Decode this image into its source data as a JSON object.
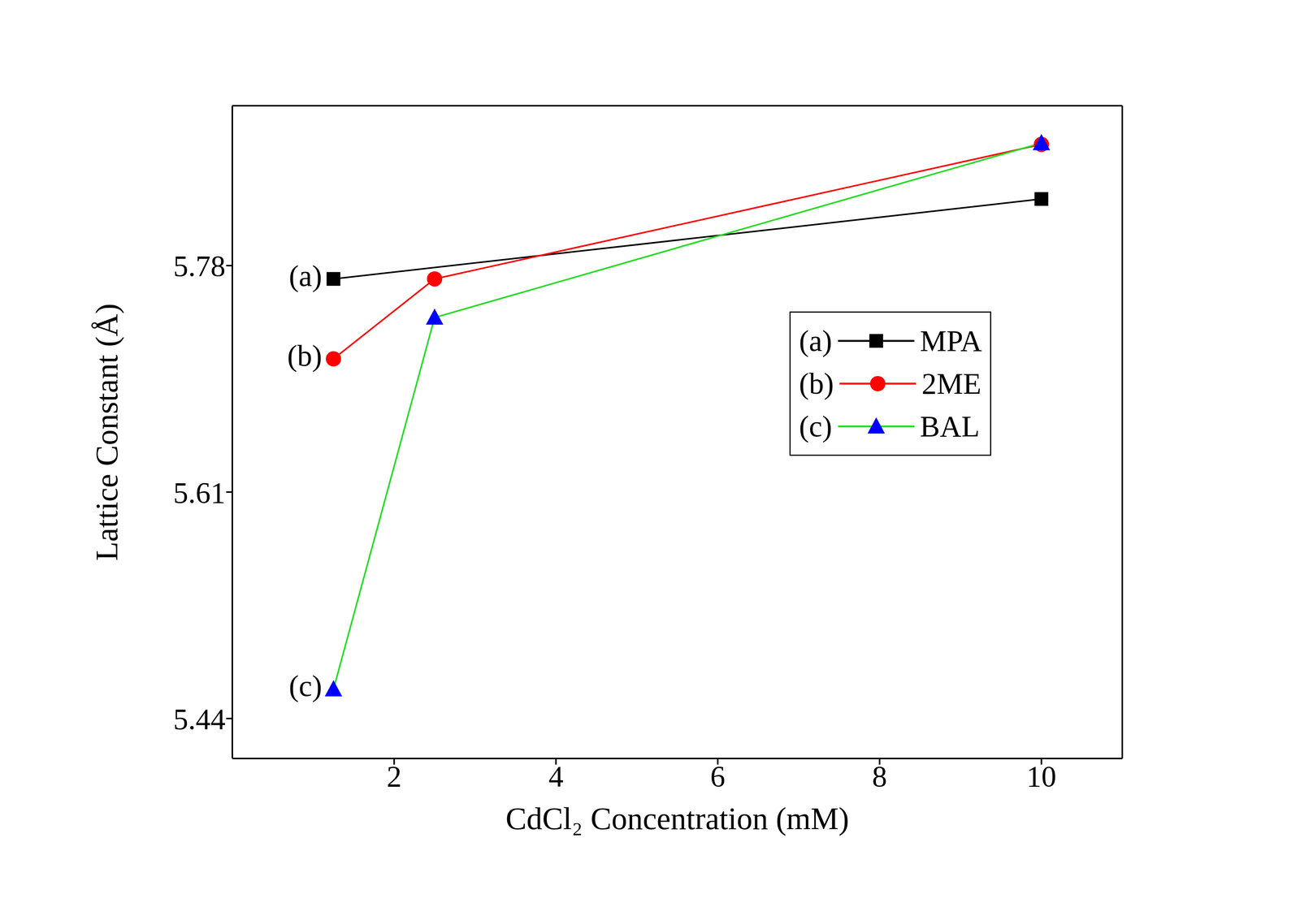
{
  "chart_data": {
    "type": "line",
    "x_label": "CdCl₂ Concentration (mM)",
    "y_label": "Lattice Constant (Å)",
    "x": [
      1.25,
      2.5,
      10
    ],
    "series": [
      {
        "name": "MPA",
        "label": "(a)",
        "color": "#000000",
        "marker": "square",
        "values": [
          5.77,
          null,
          5.83
        ]
      },
      {
        "name": "2ME",
        "label": "(b)",
        "color": "#ff0000",
        "marker": "circle",
        "values": [
          5.71,
          5.77,
          5.871
        ]
      },
      {
        "name": "BAL",
        "label": "(c)",
        "color": "#22dd22",
        "colors": [
          "#0000ff",
          "#0000ff",
          "#0000ff"
        ],
        "marker": "triangle",
        "values": [
          5.462,
          5.741,
          5.872
        ]
      }
    ],
    "xlim": [
      0,
      11
    ],
    "xticks": [
      2,
      4,
      6,
      8,
      10
    ],
    "ylim": [
      5.41,
      5.9
    ],
    "yticks": [
      5.44,
      5.61,
      5.78
    ],
    "grid": false,
    "legend": "right"
  }
}
